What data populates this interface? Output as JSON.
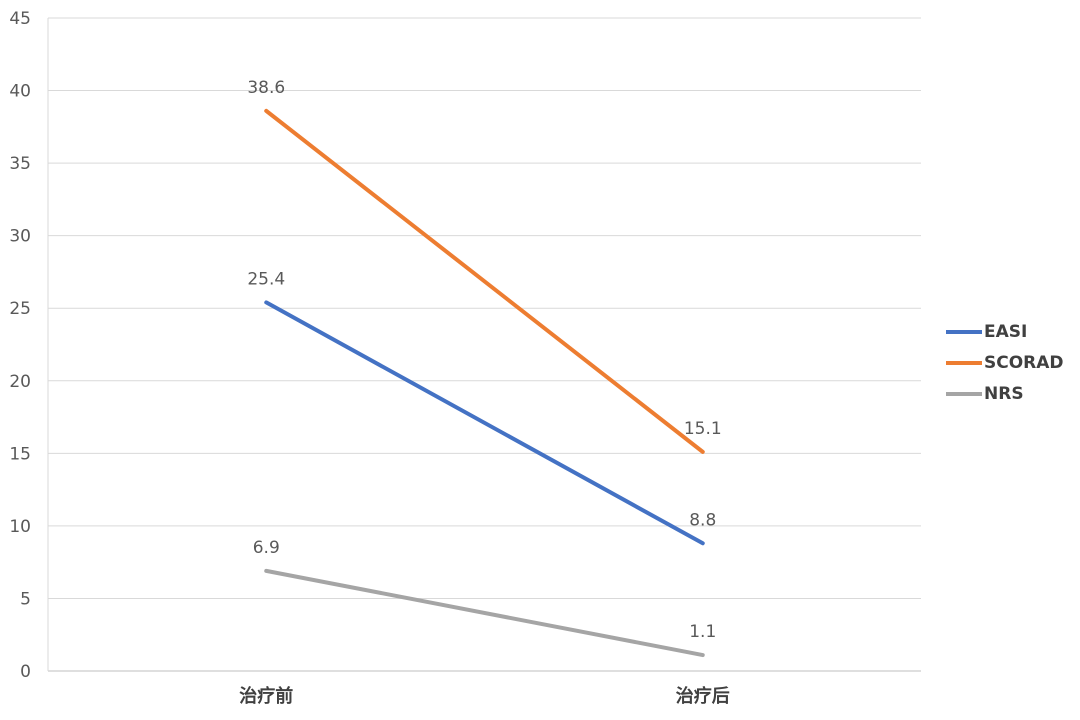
{
  "chart_data": {
    "type": "line",
    "categories": [
      "治疗前",
      "治疗后"
    ],
    "series": [
      {
        "name": "EASI",
        "values": [
          25.4,
          8.8
        ],
        "color": "#4472C4",
        "labels": [
          "25.4",
          "8.8"
        ]
      },
      {
        "name": "SCORAD",
        "values": [
          38.6,
          15.1
        ],
        "color": "#ED7D31",
        "labels": [
          "38.6",
          "15.1"
        ]
      },
      {
        "name": "NRS",
        "values": [
          6.9,
          1.1
        ],
        "color": "#A5A5A5",
        "labels": [
          "6.9",
          "1.1"
        ]
      }
    ],
    "yticks": [
      "0",
      "5",
      "10",
      "15",
      "20",
      "25",
      "30",
      "35",
      "40",
      "45"
    ],
    "ylim": [
      0,
      45
    ],
    "grid": true,
    "legend_position": "right"
  }
}
